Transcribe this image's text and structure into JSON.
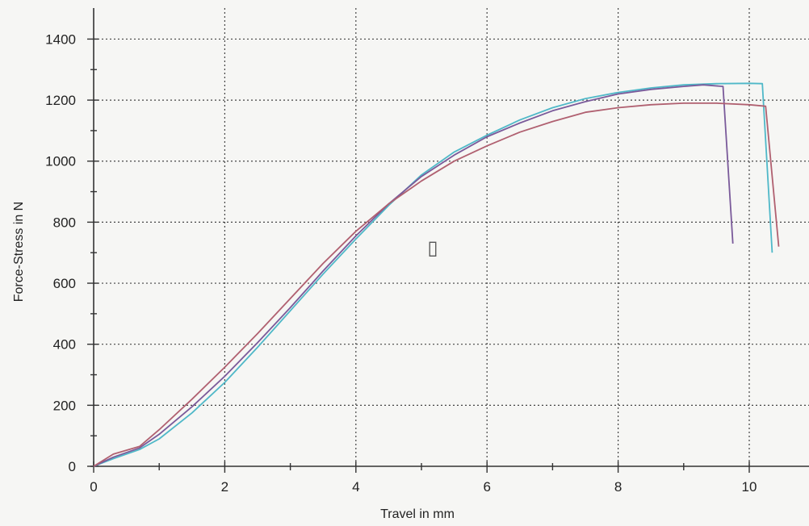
{
  "chart_data": {
    "type": "line",
    "title": "",
    "xlabel": "Travel in mm",
    "ylabel": "Force-Stress in N",
    "xlim": [
      0,
      10.9
    ],
    "ylim": [
      0,
      1400
    ],
    "xticks": [
      0,
      2,
      4,
      6,
      8,
      10
    ],
    "yticks": [
      0,
      200,
      400,
      600,
      800,
      1000,
      1200,
      1400
    ],
    "x_minor_step": 1,
    "y_minor_step": 100,
    "grid": true,
    "legend": "none",
    "series": [
      {
        "color": "#4fb8c8",
        "points": [
          [
            0,
            0
          ],
          [
            0.3,
            25
          ],
          [
            0.7,
            55
          ],
          [
            1,
            90
          ],
          [
            1.5,
            175
          ],
          [
            2,
            275
          ],
          [
            2.5,
            390
          ],
          [
            3,
            510
          ],
          [
            3.5,
            630
          ],
          [
            4,
            745
          ],
          [
            4.5,
            855
          ],
          [
            5,
            955
          ],
          [
            5.5,
            1030
          ],
          [
            6,
            1085
          ],
          [
            6.5,
            1135
          ],
          [
            7,
            1175
          ],
          [
            7.5,
            1205
          ],
          [
            8,
            1225
          ],
          [
            8.5,
            1240
          ],
          [
            9,
            1250
          ],
          [
            9.5,
            1254
          ],
          [
            10,
            1255
          ],
          [
            10.2,
            1254
          ],
          [
            10.35,
            700
          ]
        ]
      },
      {
        "color": "#7a5a9a",
        "points": [
          [
            0,
            0
          ],
          [
            0.3,
            30
          ],
          [
            0.7,
            60
          ],
          [
            1,
            105
          ],
          [
            1.5,
            195
          ],
          [
            2,
            295
          ],
          [
            2.5,
            405
          ],
          [
            3,
            520
          ],
          [
            3.5,
            640
          ],
          [
            4,
            755
          ],
          [
            4.5,
            860
          ],
          [
            5,
            950
          ],
          [
            5.5,
            1020
          ],
          [
            6,
            1080
          ],
          [
            6.5,
            1125
          ],
          [
            7,
            1165
          ],
          [
            7.5,
            1195
          ],
          [
            8,
            1220
          ],
          [
            8.5,
            1235
          ],
          [
            9,
            1245
          ],
          [
            9.3,
            1250
          ],
          [
            9.6,
            1245
          ],
          [
            9.75,
            730
          ]
        ]
      },
      {
        "color": "#b06070",
        "points": [
          [
            0,
            0
          ],
          [
            0.3,
            40
          ],
          [
            0.7,
            65
          ],
          [
            1,
            120
          ],
          [
            1.5,
            220
          ],
          [
            2,
            325
          ],
          [
            2.5,
            435
          ],
          [
            3,
            550
          ],
          [
            3.5,
            665
          ],
          [
            4,
            770
          ],
          [
            4.5,
            860
          ],
          [
            5,
            935
          ],
          [
            5.5,
            1000
          ],
          [
            6,
            1050
          ],
          [
            6.5,
            1095
          ],
          [
            7,
            1130
          ],
          [
            7.5,
            1160
          ],
          [
            8,
            1175
          ],
          [
            8.5,
            1185
          ],
          [
            9,
            1190
          ],
          [
            9.5,
            1190
          ],
          [
            10,
            1185
          ],
          [
            10.25,
            1180
          ],
          [
            10.45,
            720
          ]
        ]
      }
    ]
  },
  "annotation": {
    "marker_glyph": "▯"
  }
}
